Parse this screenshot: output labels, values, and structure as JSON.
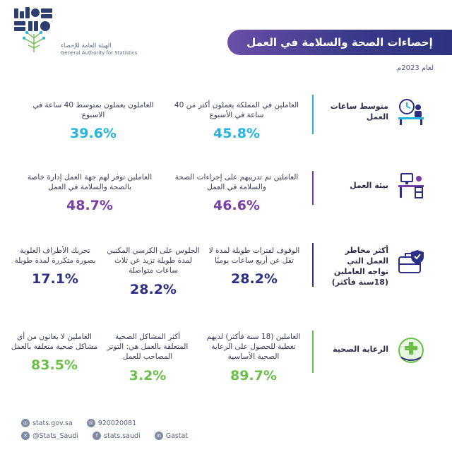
{
  "header": {
    "logo_ar": "الهيئة العامة للإحصاء",
    "logo_en": "General Authority for Statistics",
    "title": "إحصاءات الصحة والسلامة في العمل",
    "year": "لعام 2023م"
  },
  "rows": [
    {
      "category": "متوسط ساعات العمل",
      "icon": "clock-desk-icon",
      "color": "#25b4e0",
      "stats": [
        {
          "text": "العاملين في المملكة يعملون أكثر من 40 ساعة في الأسبوع",
          "value": "45.8%"
        },
        {
          "text": "العاملون يعملون بمتوسط 40 ساعة في الاسبوع",
          "value": "39.6%"
        }
      ]
    },
    {
      "category": "بيئة العمل",
      "icon": "office-desk-icon",
      "color": "#7a3fa6",
      "stats": [
        {
          "text": "العاملين تم تدريبهم على إجراءات الصحة والسلامة في العمل",
          "value": "46.6%"
        },
        {
          "text": "العاملين توفر لهم جهة العمل إدارة خاصة بالصحة والسلامة في العمل",
          "value": "48.7%"
        }
      ]
    },
    {
      "category": "أكثر مخاطر العمل التي تواجه العاملين (18سنة فأكثر)",
      "icon": "briefcase-shield-icon",
      "color": "#2c2f84",
      "stats": [
        {
          "text": "الوقوف لفترات طويلة لمدة لا تقل عن أربع ساعات يوميًا",
          "value": "28.2%"
        },
        {
          "text": "الجلوس على الكرسي المكتبي لمدة طويلة تزيد عن ثلاث ساعات متواصلة",
          "value": "28.2%"
        },
        {
          "text": "تحريك الأطراف العلوية بصورة متكررة لمدة طويلة",
          "value": "17.1%"
        }
      ]
    },
    {
      "category": "الرعاية الصحية",
      "icon": "health-care-icon",
      "color": "#6cc04a",
      "stats": [
        {
          "text": "العاملين (18 سنة فأكثر) لديهم تغطية للحصول على الرعاية الصحية الأساسية",
          "value": "89.7%"
        },
        {
          "text": "أكثر المشاكل الصحية المتعلقة بالعمل هي: التوتر المصاحب للعمل",
          "value": "3.2%"
        },
        {
          "text": "العاملين لا يعانون من أي مشاكل صحية متعلقة بالعمل",
          "value": "83.5%"
        }
      ]
    }
  ],
  "footer": {
    "website": "stats.gov.sa",
    "phone": "920020081",
    "twitter": "@Stats_Saudi",
    "facebook": "stats.saudi",
    "linkedin": "Gastat"
  }
}
